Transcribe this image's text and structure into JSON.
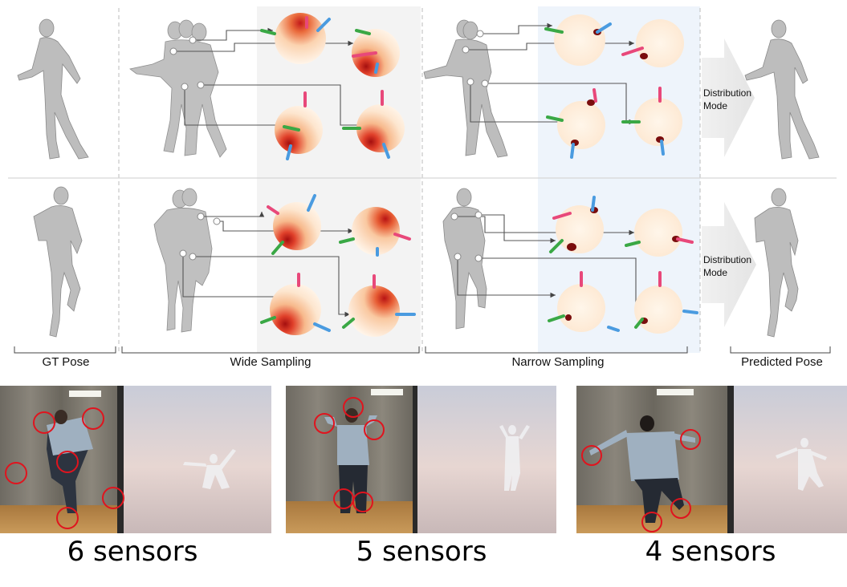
{
  "sections": {
    "gt_pose": "GT Pose",
    "wide_sampling": "Wide Sampling",
    "narrow_sampling": "Narrow Sampling",
    "predicted_pose": "Predicted Pose"
  },
  "arrow_label": {
    "line1": "Distribution",
    "line2": "Mode"
  },
  "photos": [
    {
      "caption": "6 sensors",
      "sensor_count": 6
    },
    {
      "caption": "5 sensors",
      "sensor_count": 5
    },
    {
      "caption": "4 sensors",
      "sensor_count": 4
    }
  ],
  "colors": {
    "wide_panel_bg": "#f3f3f3",
    "narrow_panel_bg": "#eef4fb",
    "sensor_circle": "#e0141e",
    "arrow_red": "#e8487a",
    "arrow_green": "#3aa845",
    "arrow_blue": "#4a9be0"
  }
}
